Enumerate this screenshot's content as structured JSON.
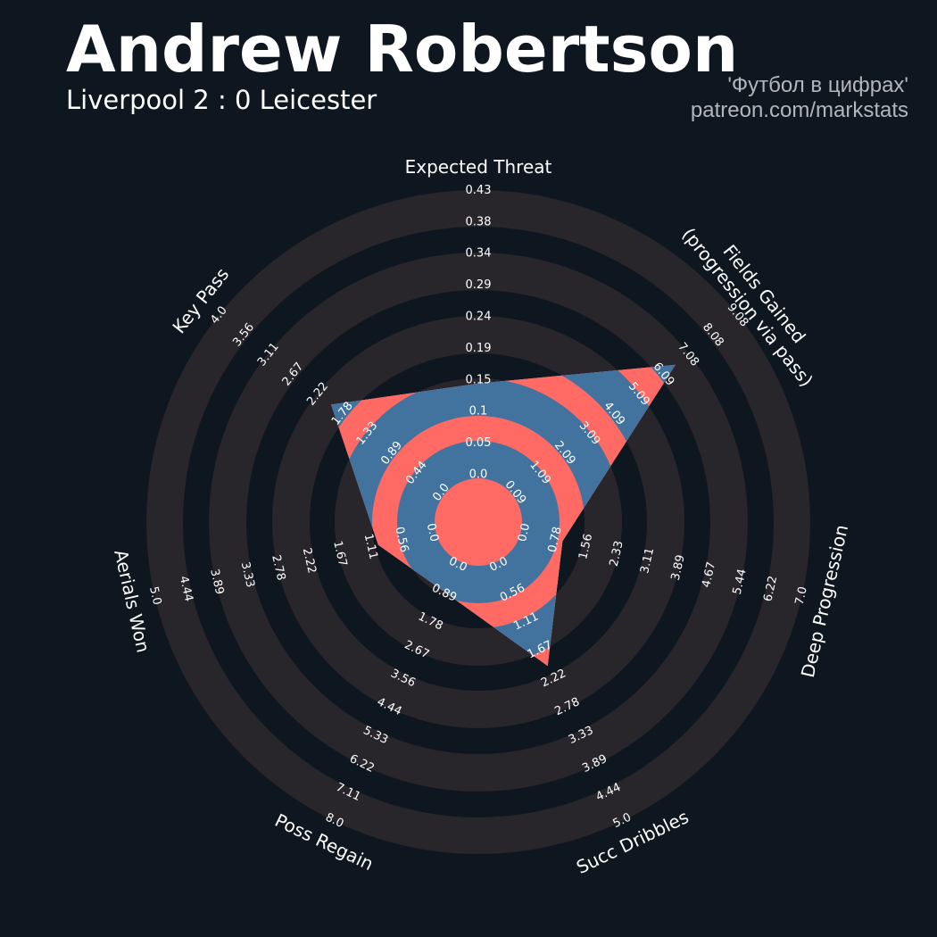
{
  "header": {
    "title": "Andrew Robertson",
    "subtitle": "Liverpool 2 : 0 Leicester",
    "credit_line1": "'Футбол в цифрах'",
    "credit_line2": "patreon.com/markstats"
  },
  "colors": {
    "background": "#0e1720",
    "ring_band": "#28252b",
    "radar_inner": "#ff6b64",
    "radar_ring": "#41739e",
    "text": "#ffffff",
    "credit_text": "#b3b6ba"
  },
  "chart_data": {
    "type": "radar",
    "params": [
      {
        "name": [
          "Expected Threat"
        ],
        "min": 0.0,
        "max": 0.43,
        "value": 0.14,
        "ring_labels": [
          "0.0",
          "0.05",
          "0.1",
          "0.15",
          "0.19",
          "0.24",
          "0.29",
          "0.34",
          "0.38",
          "0.43"
        ]
      },
      {
        "name": [
          "Fields Gained",
          "(progression via pass)"
        ],
        "min": 0.09,
        "max": 9.08,
        "value": 6.6,
        "ring_labels": [
          "0.09",
          "1.09",
          "2.09",
          "3.09",
          "4.09",
          "5.09",
          "6.09",
          "7.08",
          "8.08",
          "9.08"
        ]
      },
      {
        "name": [
          "Deep Progression"
        ],
        "min": 0.0,
        "max": 7.0,
        "value": 1.0,
        "ring_labels": [
          "0.0",
          "0.78",
          "1.56",
          "2.33",
          "3.11",
          "3.89",
          "4.67",
          "5.44",
          "6.22",
          "7.0"
        ]
      },
      {
        "name": [
          "Succ Dribbles"
        ],
        "min": 0.0,
        "max": 5.0,
        "value": 2.0,
        "ring_labels": [
          "0.0",
          "0.56",
          "1.11",
          "1.67",
          "2.22",
          "2.78",
          "3.33",
          "3.89",
          "4.44",
          "5.0"
        ]
      },
      {
        "name": [
          "Poss Regain"
        ],
        "min": 0.0,
        "max": 8.0,
        "value": 0.9,
        "ring_labels": [
          "0.0",
          "0.89",
          "1.78",
          "2.67",
          "3.56",
          "4.44",
          "5.33",
          "6.22",
          "7.11",
          "8.0"
        ]
      },
      {
        "name": [
          "Aerials Won"
        ],
        "min": 0.0,
        "max": 5.0,
        "value": 1.0,
        "ring_labels": [
          "0.0",
          "0.56",
          "1.11",
          "1.67",
          "2.22",
          "2.78",
          "3.33",
          "3.89",
          "4.44",
          "5.0"
        ]
      },
      {
        "name": [
          "Key Pass"
        ],
        "min": 0.0,
        "max": 4.0,
        "value": 2.0,
        "ring_labels": [
          "0.0",
          "0.44",
          "0.89",
          "1.33",
          "1.78",
          "2.22",
          "2.67",
          "3.11",
          "3.56",
          "4.0"
        ]
      }
    ]
  }
}
